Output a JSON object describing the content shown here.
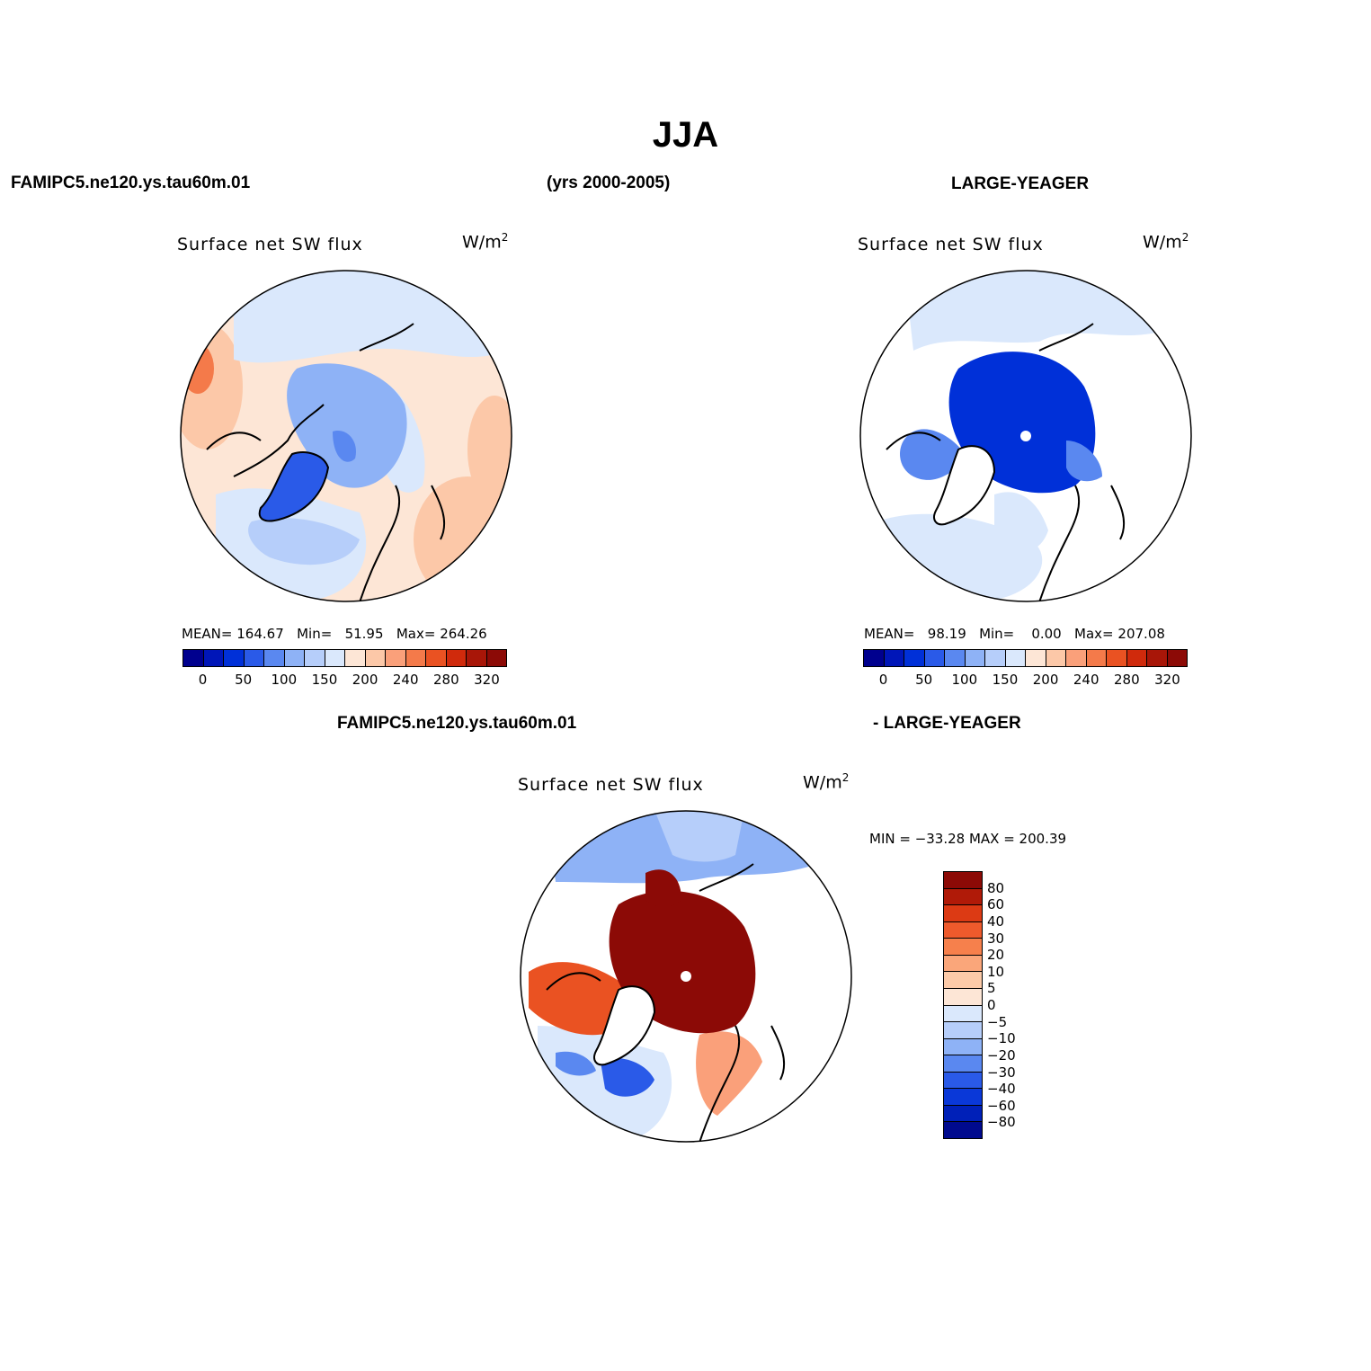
{
  "title": "JJA",
  "header": {
    "left": "FAMIPC5.ne120.ys.tau60m.01",
    "center": "(yrs 2000-2005)",
    "right": "LARGE-YEAGER"
  },
  "diff_header": {
    "left": "FAMIPC5.ne120.ys.tau60m.01",
    "right": "- LARGE-YEAGER"
  },
  "panels": [
    {
      "name": "model",
      "title": "Surface net SW flux",
      "units_base": "W/m",
      "units_exp": "2",
      "mean_label": "MEAN=",
      "mean": "164.67",
      "min_label": "Min=",
      "min": "51.95",
      "max_label": "Max=",
      "max": "264.26"
    },
    {
      "name": "obs",
      "title": "Surface net SW flux",
      "units_base": "W/m",
      "units_exp": "2",
      "mean_label": "MEAN=",
      "mean": "98.19",
      "min_label": "Min=",
      "min": "0.00",
      "max_label": "Max=",
      "max": "207.08"
    },
    {
      "name": "difference",
      "title": "Surface net SW flux",
      "units_base": "W/m",
      "units_exp": "2",
      "minmax_text": "MIN = −33.28 MAX = 200.39"
    }
  ],
  "field_colorbar": {
    "colors": [
      "#00008e",
      "#0016b8",
      "#0030d8",
      "#2a5ae8",
      "#5a88f0",
      "#8eb2f6",
      "#b6cefa",
      "#dae8fc",
      "#fde6d6",
      "#fcc8a8",
      "#faa07a",
      "#f47a4a",
      "#ea5222",
      "#d02a0c",
      "#a81608",
      "#8c0a06"
    ],
    "tick_labels": [
      "0",
      "50",
      "100",
      "150",
      "200",
      "240",
      "280",
      "320"
    ]
  },
  "diff_colorbar": {
    "colors_top_to_bottom": [
      "#8c0a06",
      "#b01a08",
      "#dc3a14",
      "#ee5a2c",
      "#f6804c",
      "#faa67a",
      "#fccaa8",
      "#fde6d6",
      "#dae8fc",
      "#b6cefa",
      "#8eb2f6",
      "#5a88f0",
      "#2a5ae8",
      "#0a38d8",
      "#0020b8",
      "#000a8e"
    ],
    "tick_labels": [
      "80",
      "60",
      "40",
      "30",
      "20",
      "10",
      "5",
      "0",
      "−5",
      "−10",
      "−20",
      "−30",
      "−40",
      "−60",
      "−80"
    ]
  }
}
